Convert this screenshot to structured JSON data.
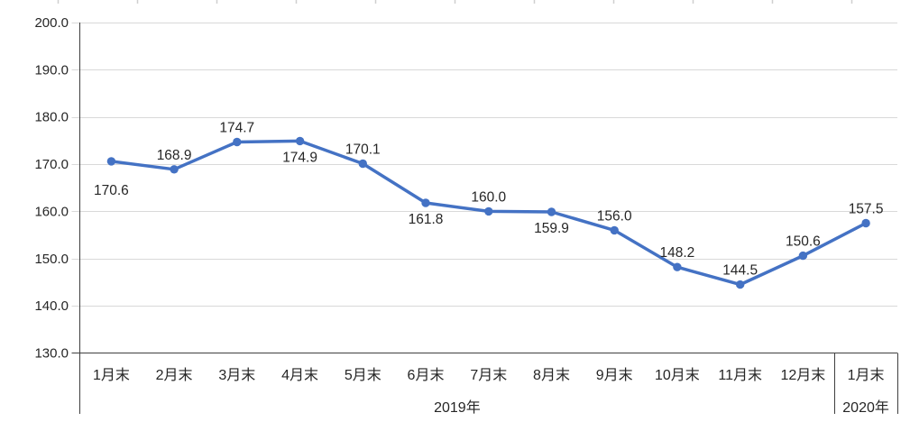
{
  "chart_data": {
    "type": "line",
    "title": "",
    "xlabel": "",
    "ylabel": "",
    "categories": [
      "1月末",
      "2月末",
      "3月末",
      "4月末",
      "5月末",
      "6月末",
      "7月末",
      "8月末",
      "9月末",
      "10月末",
      "11月末",
      "12月末",
      "1月末"
    ],
    "category_groups": [
      {
        "label": "2019年",
        "span": 12
      },
      {
        "label": "2020年",
        "span": 1
      }
    ],
    "series": [
      {
        "name": "",
        "values": [
          170.6,
          168.9,
          174.7,
          174.9,
          170.1,
          161.8,
          160.0,
          159.9,
          156.0,
          148.2,
          144.5,
          150.6,
          157.5
        ]
      }
    ],
    "data_labels": [
      "170.6",
      "168.9",
      "174.7",
      "174.9",
      "170.1",
      "161.8",
      "160.0",
      "159.9",
      "156.0",
      "148.2",
      "144.5",
      "150.6",
      "157.5"
    ],
    "label_positions": [
      "below_far",
      "above",
      "above",
      "below",
      "above",
      "below",
      "above",
      "below",
      "above",
      "above",
      "above",
      "above",
      "above"
    ],
    "y_tick_labels": [
      "200.0",
      "190.0",
      "180.0",
      "170.0",
      "160.0",
      "150.0",
      "140.0",
      "130.0"
    ],
    "y_ticks": [
      200.0,
      190.0,
      180.0,
      170.0,
      160.0,
      150.0,
      140.0,
      130.0
    ],
    "ylim": [
      130.0,
      200.0
    ],
    "grid": true,
    "legend": "none",
    "colors": {
      "line": "#4472C4",
      "marker": "#4472C4",
      "gridline": "#D9D9D9",
      "axis": "#3F3F3F",
      "text": "#262626",
      "background": "#FFFFFF"
    }
  }
}
